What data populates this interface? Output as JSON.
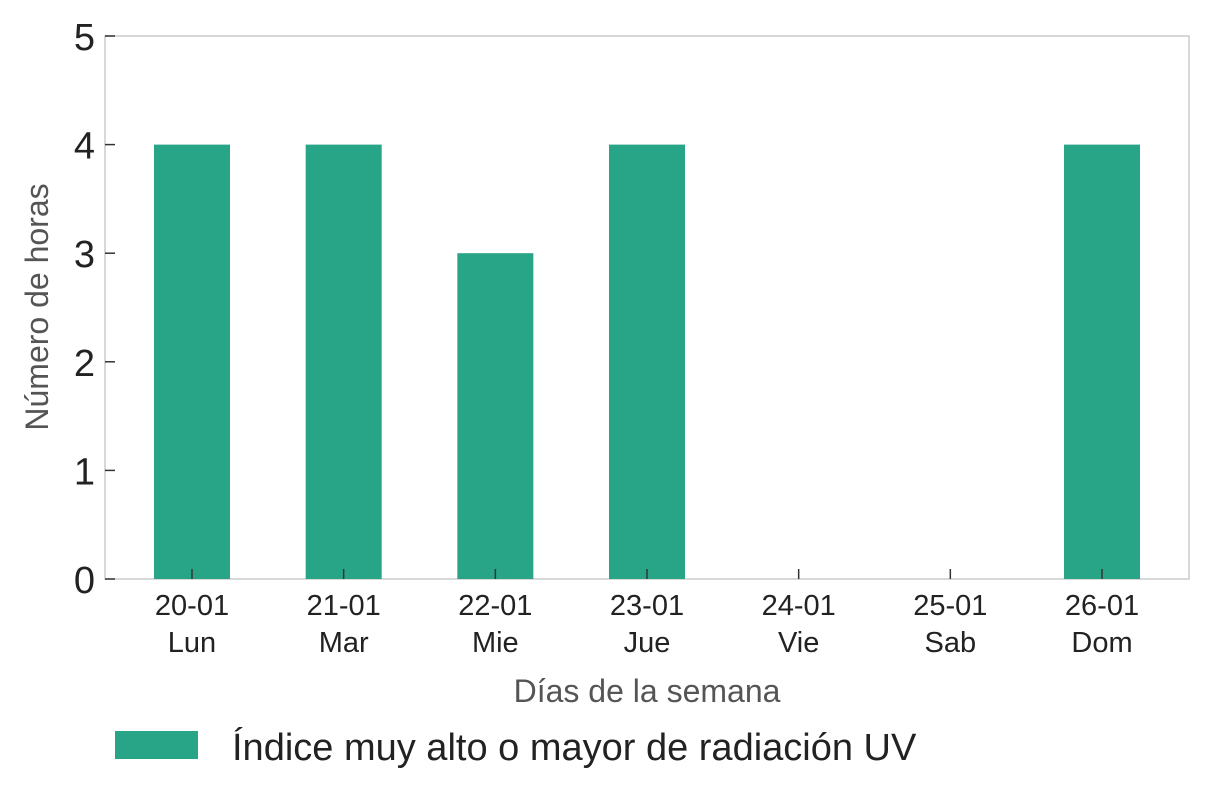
{
  "chart_data": {
    "type": "bar",
    "categories": [
      [
        "20-01",
        "Lun"
      ],
      [
        "21-01",
        "Mar"
      ],
      [
        "22-01",
        "Mie"
      ],
      [
        "23-01",
        "Jue"
      ],
      [
        "24-01",
        "Vie"
      ],
      [
        "25-01",
        "Sab"
      ],
      [
        "26-01",
        "Dom"
      ]
    ],
    "series": [
      {
        "name": "Índice muy alto o mayor de radiación UV",
        "values": [
          4,
          4,
          3,
          4,
          0,
          0,
          4
        ],
        "color": "#27a586"
      }
    ],
    "title": "",
    "xlabel": "Días de la semana",
    "ylabel": "Número de horas",
    "ylim": [
      0,
      5
    ],
    "yticks": [
      0,
      1,
      2,
      3,
      4,
      5
    ],
    "grid": false,
    "legend_position": "bottom"
  }
}
